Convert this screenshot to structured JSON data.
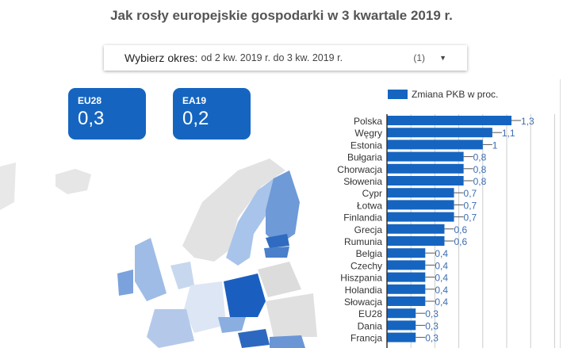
{
  "title": "Jak rosły europejskie gospodarki w 3 kwartale 2019 r.",
  "selector": {
    "label": "Wybierz okres:",
    "value": "od 2 kw. 2019 r. do 3 kw. 2019 r.",
    "count": "(1)",
    "icon": "caret-down-icon"
  },
  "kpis": [
    {
      "label": "EU28",
      "value": "0,3"
    },
    {
      "label": "EA19",
      "value": "0,2"
    }
  ],
  "colors": {
    "bar": "#1565c0",
    "kpi": "#1565c0",
    "label": "#3b6db3"
  },
  "chart_data": {
    "type": "bar",
    "orientation": "horizontal",
    "legend": "Zmiana PKB w proc.",
    "legend_position": "top",
    "categories": [
      "Polska",
      "Węgry",
      "Estonia",
      "Bułgaria",
      "Chorwacja",
      "Słowenia",
      "Cypr",
      "Łotwa",
      "Finlandia",
      "Grecja",
      "Rumunia",
      "Belgia",
      "Czechy",
      "Hiszpania",
      "Holandia",
      "Słowacja",
      "EU28",
      "Dania",
      "Francja"
    ],
    "values": [
      1.3,
      1.1,
      1,
      0.8,
      0.8,
      0.8,
      0.7,
      0.7,
      0.7,
      0.6,
      0.6,
      0.4,
      0.4,
      0.4,
      0.4,
      0.4,
      0.3,
      0.3,
      0.3
    ],
    "labels": [
      "1,3",
      "1,1",
      "1",
      "0,8",
      "0,8",
      "0,8",
      "0,7",
      "0,7",
      "0,7",
      "0,6",
      "0,6",
      "0,4",
      "0,4",
      "0,4",
      "0,4",
      "0,4",
      "0,3",
      "0,3",
      "0,3"
    ],
    "grid": true
  }
}
